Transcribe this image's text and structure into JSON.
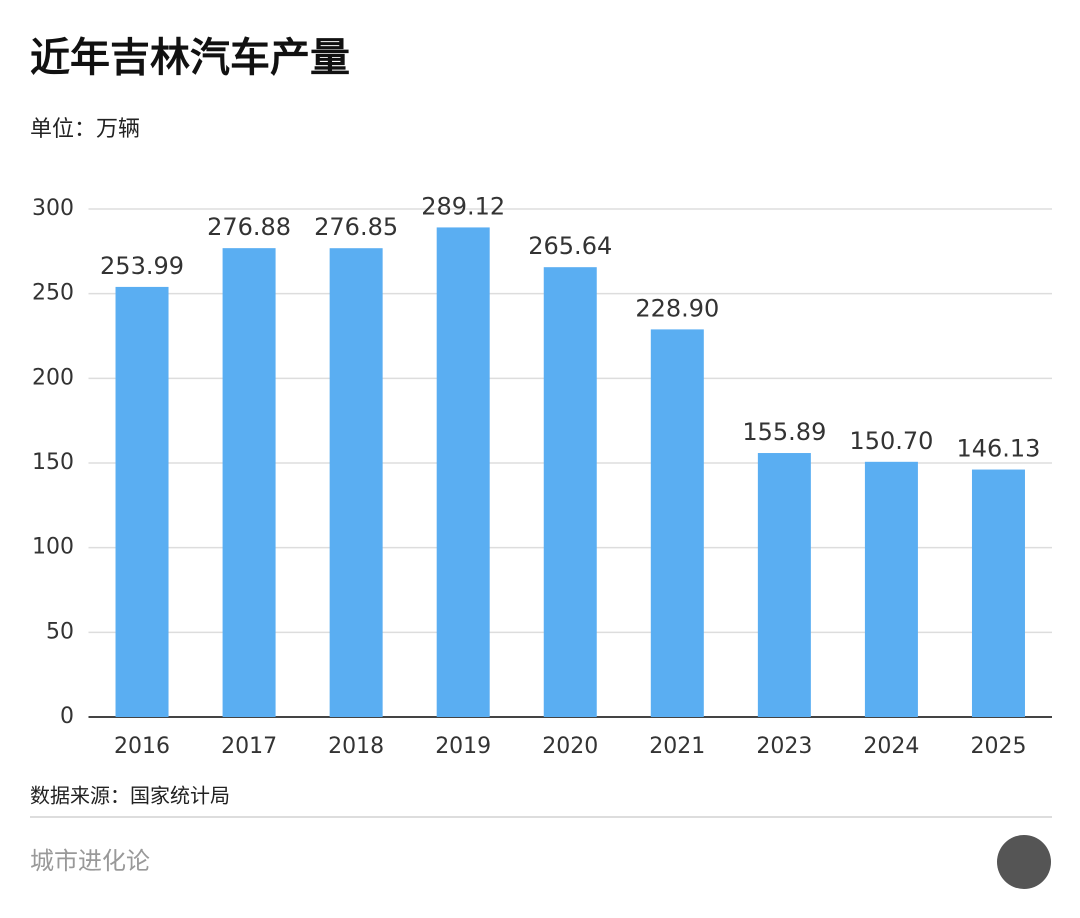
{
  "chart_data": {
    "type": "bar",
    "title": "近年吉林汽车产量",
    "subtitle": "单位：万辆",
    "categories": [
      "2016",
      "2017",
      "2018",
      "2019",
      "2020",
      "2021",
      "2023",
      "2024",
      "2025"
    ],
    "values": [
      253.99,
      276.88,
      276.85,
      289.12,
      265.64,
      228.9,
      155.89,
      150.7,
      146.13
    ],
    "value_labels": [
      "253.99",
      "276.88",
      "276.85",
      "289.12",
      "265.64",
      "228.90",
      "155.89",
      "150.70",
      "146.13"
    ],
    "color": "#5aaef2",
    "ylim": [
      0,
      300
    ],
    "yticks": [
      0,
      50,
      100,
      150,
      200,
      250,
      300
    ],
    "grid": true,
    "source": "数据来源：国家统计局",
    "footer": "城市进化论"
  }
}
